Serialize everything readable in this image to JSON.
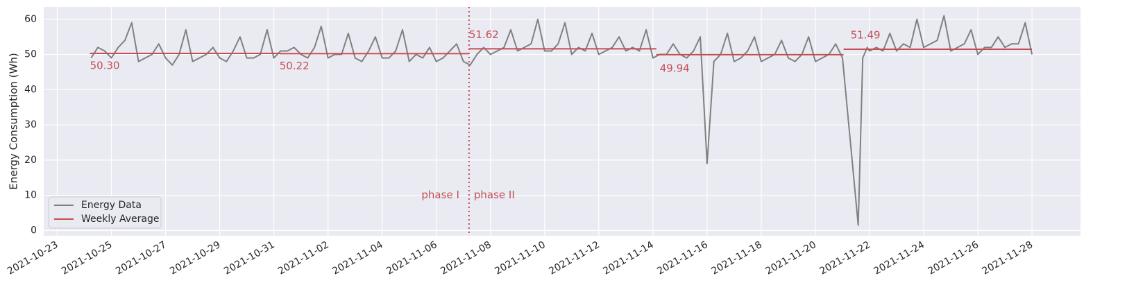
{
  "chart_data": {
    "type": "line",
    "ylabel": "Energy Consumption (Wh)",
    "xlim": [
      "2021-10-22T12:00",
      "2021-11-29T19:00"
    ],
    "xticks": [
      "2021-10-23",
      "2021-10-25",
      "2021-10-27",
      "2021-10-29",
      "2021-10-31",
      "2021-11-02",
      "2021-11-04",
      "2021-11-06",
      "2021-11-08",
      "2021-11-10",
      "2021-11-12",
      "2021-11-14",
      "2021-11-16",
      "2021-11-18",
      "2021-11-20",
      "2021-11-22",
      "2021-11-24",
      "2021-11-26",
      "2021-11-28"
    ],
    "ylim": [
      -1.5,
      63.5
    ],
    "yticks": [
      0,
      10,
      20,
      30,
      40,
      50,
      60
    ],
    "grid": true,
    "legend": "lower left",
    "divider": "2021-11-07T05:00",
    "divider_color": "#c44e52",
    "annotations": [
      "phase I",
      "phase II"
    ],
    "series": [
      {
        "name": "Energy Data",
        "color": "#808080",
        "x": [
          "2021-10-24T06:00",
          "2021-10-24T12:00",
          "2021-10-24T18:00",
          "2021-10-25T00:00",
          "2021-10-25T06:00",
          "2021-10-25T12:00",
          "2021-10-25T18:00",
          "2021-10-26T00:00",
          "2021-10-26T06:00",
          "2021-10-26T12:00",
          "2021-10-26T18:00",
          "2021-10-27T00:00",
          "2021-10-27T06:00",
          "2021-10-27T12:00",
          "2021-10-27T18:00",
          "2021-10-28T00:00",
          "2021-10-28T06:00",
          "2021-10-28T12:00",
          "2021-10-28T18:00",
          "2021-10-29T00:00",
          "2021-10-29T06:00",
          "2021-10-29T12:00",
          "2021-10-29T18:00",
          "2021-10-30T00:00",
          "2021-10-30T06:00",
          "2021-10-30T12:00",
          "2021-10-30T18:00",
          "2021-10-31T00:00",
          "2021-10-31T06:00",
          "2021-10-31T12:00",
          "2021-10-31T18:00",
          "2021-11-01T00:00",
          "2021-11-01T06:00",
          "2021-11-01T12:00",
          "2021-11-01T18:00",
          "2021-11-02T00:00",
          "2021-11-02T06:00",
          "2021-11-02T12:00",
          "2021-11-02T18:00",
          "2021-11-03T00:00",
          "2021-11-03T06:00",
          "2021-11-03T12:00",
          "2021-11-03T18:00",
          "2021-11-04T00:00",
          "2021-11-04T06:00",
          "2021-11-04T12:00",
          "2021-11-04T18:00",
          "2021-11-05T00:00",
          "2021-11-05T06:00",
          "2021-11-05T12:00",
          "2021-11-05T18:00",
          "2021-11-06T00:00",
          "2021-11-06T06:00",
          "2021-11-06T12:00",
          "2021-11-06T18:00",
          "2021-11-07T00:00",
          "2021-11-07T06:00",
          "2021-11-07T12:00",
          "2021-11-07T18:00",
          "2021-11-08T00:00",
          "2021-11-08T06:00",
          "2021-11-08T12:00",
          "2021-11-08T18:00",
          "2021-11-09T00:00",
          "2021-11-09T06:00",
          "2021-11-09T12:00",
          "2021-11-09T18:00",
          "2021-11-10T00:00",
          "2021-11-10T06:00",
          "2021-11-10T12:00",
          "2021-11-10T18:00",
          "2021-11-11T00:00",
          "2021-11-11T06:00",
          "2021-11-11T12:00",
          "2021-11-11T18:00",
          "2021-11-12T00:00",
          "2021-11-12T06:00",
          "2021-11-12T12:00",
          "2021-11-12T18:00",
          "2021-11-13T00:00",
          "2021-11-13T06:00",
          "2021-11-13T12:00",
          "2021-11-13T18:00",
          "2021-11-14T00:00",
          "2021-11-14T06:00",
          "2021-11-14T12:00",
          "2021-11-14T18:00",
          "2021-11-15T00:00",
          "2021-11-15T06:00",
          "2021-11-15T12:00",
          "2021-11-15T18:00",
          "2021-11-16T00:00",
          "2021-11-16T06:00",
          "2021-11-16T12:00",
          "2021-11-16T18:00",
          "2021-11-17T00:00",
          "2021-11-17T06:00",
          "2021-11-17T12:00",
          "2021-11-17T18:00",
          "2021-11-18T00:00",
          "2021-11-18T06:00",
          "2021-11-18T12:00",
          "2021-11-18T18:00",
          "2021-11-19T00:00",
          "2021-11-19T06:00",
          "2021-11-19T12:00",
          "2021-11-19T18:00",
          "2021-11-20T00:00",
          "2021-11-20T06:00",
          "2021-11-20T12:00",
          "2021-11-20T18:00",
          "2021-11-21T00:00",
          "2021-11-21T14:00",
          "2021-11-21T18:00",
          "2021-11-21T22:00",
          "2021-11-22T00:00",
          "2021-11-22T06:00",
          "2021-11-22T12:00",
          "2021-11-22T18:00",
          "2021-11-23T00:00",
          "2021-11-23T06:00",
          "2021-11-23T12:00",
          "2021-11-23T18:00",
          "2021-11-24T00:00",
          "2021-11-24T06:00",
          "2021-11-24T12:00",
          "2021-11-24T18:00",
          "2021-11-25T00:00",
          "2021-11-25T06:00",
          "2021-11-25T12:00",
          "2021-11-25T18:00",
          "2021-11-26T00:00",
          "2021-11-26T06:00",
          "2021-11-26T12:00",
          "2021-11-26T18:00",
          "2021-11-27T00:00",
          "2021-11-27T06:00",
          "2021-11-27T12:00",
          "2021-11-27T18:00",
          "2021-11-28T00:00"
        ],
        "values": [
          49,
          52,
          51,
          49,
          52,
          54,
          59,
          48,
          49,
          50,
          53,
          49,
          47,
          50,
          57,
          48,
          49,
          50,
          52,
          49,
          48,
          51,
          55,
          49,
          49,
          50,
          57,
          49,
          51,
          51,
          52,
          50,
          49,
          52,
          58,
          49,
          50,
          50,
          56,
          49,
          48,
          51,
          55,
          49,
          49,
          51,
          57,
          48,
          50,
          49,
          52,
          48,
          49,
          51,
          53,
          48,
          47,
          50,
          52,
          50,
          51,
          52,
          57,
          51,
          52,
          53,
          60,
          51,
          51,
          53,
          59,
          50,
          52,
          51,
          56,
          50,
          51,
          52,
          55,
          51,
          52,
          51,
          57,
          49,
          50,
          50,
          53,
          50,
          49,
          51,
          55,
          19,
          48,
          50,
          56,
          48,
          49,
          51,
          55,
          48,
          49,
          50,
          54,
          49,
          48,
          50,
          55,
          48,
          49,
          50,
          53,
          49,
          1.5,
          49,
          52,
          51,
          52,
          51,
          56,
          51,
          53,
          52,
          60,
          52,
          53,
          54,
          61,
          51,
          52,
          53,
          57,
          50,
          52,
          52,
          55,
          52,
          53,
          53,
          59,
          50
        ]
      },
      {
        "name": "Weekly Average",
        "color": "#c44e52",
        "starts": [
          "2021-10-24T05:00",
          "2021-10-31T05:00",
          "2021-11-07T05:00",
          "2021-11-14T03:00",
          "2021-11-21T01:00"
        ],
        "ends": [
          "2021-10-31T05:00",
          "2021-11-07T05:00",
          "2021-11-14T03:00",
          "2021-11-21T01:00",
          "2021-11-28T00:00"
        ],
        "values": [
          50.3,
          50.22,
          51.62,
          49.94,
          51.49
        ],
        "value_labels": [
          "50.30",
          "50.22",
          "51.62",
          "49.94",
          "51.49"
        ]
      }
    ]
  }
}
